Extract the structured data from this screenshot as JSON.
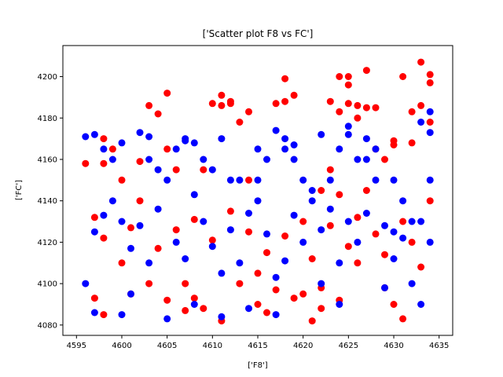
{
  "chart_data": {
    "type": "scatter",
    "title": "['Scatter plot F8 vs FC']",
    "xlabel": "['F8']",
    "ylabel": "['FC']",
    "xlim": [
      4593.5,
      4636.5
    ],
    "ylim": [
      4075,
      4215
    ],
    "xticks": [
      4595,
      4600,
      4605,
      4610,
      4615,
      4620,
      4625,
      4630,
      4635
    ],
    "yticks": [
      4080,
      4100,
      4120,
      4140,
      4160,
      4180,
      4200
    ],
    "grid": false,
    "legend": "none",
    "colors": {
      "red_series": "#ff0000",
      "blue_series": "#0000ff"
    },
    "series": [
      {
        "color": "#ff0000",
        "points": [
          [
            4596,
            4158
          ],
          [
            4597,
            4093
          ],
          [
            4598,
            4158
          ],
          [
            4598,
            4085
          ],
          [
            4598,
            4170
          ],
          [
            4599,
            4165
          ],
          [
            4600,
            4150
          ],
          [
            4601,
            4095
          ],
          [
            4602,
            4140
          ],
          [
            4602,
            4159
          ],
          [
            4603,
            4186
          ],
          [
            4604,
            4182
          ],
          [
            4605,
            4192
          ],
          [
            4605,
            4165
          ],
          [
            4606,
            4155
          ],
          [
            4607,
            4100
          ],
          [
            4608,
            4093
          ],
          [
            4609,
            4155
          ],
          [
            4610,
            4187
          ],
          [
            4611,
            4191
          ],
          [
            4611,
            4186
          ],
          [
            4612,
            4188
          ],
          [
            4612,
            4187
          ],
          [
            4613,
            4178
          ],
          [
            4614,
            4183
          ],
          [
            4614,
            4150
          ],
          [
            4615,
            4090
          ],
          [
            4616,
            4086
          ],
          [
            4617,
            4187
          ],
          [
            4618,
            4188
          ],
          [
            4618,
            4199
          ],
          [
            4619,
            4191
          ],
          [
            4620,
            4095
          ],
          [
            4621,
            4082
          ],
          [
            4622,
            4088
          ],
          [
            4622,
            4145
          ],
          [
            4623,
            4155
          ],
          [
            4623,
            4188
          ],
          [
            4624,
            4183
          ],
          [
            4624,
            4200
          ],
          [
            4625,
            4200
          ],
          [
            4625,
            4196
          ],
          [
            4625,
            4187
          ],
          [
            4626,
            4186
          ],
          [
            4626,
            4180
          ],
          [
            4627,
            4185
          ],
          [
            4627,
            4203
          ],
          [
            4628,
            4185
          ],
          [
            4628,
            4165
          ],
          [
            4629,
            4160
          ],
          [
            4630,
            4167
          ],
          [
            4630,
            4169
          ],
          [
            4631,
            4200
          ],
          [
            4631,
            4083
          ],
          [
            4632,
            4183
          ],
          [
            4632,
            4168
          ],
          [
            4633,
            4207
          ],
          [
            4633,
            4186
          ],
          [
            4634,
            4197
          ],
          [
            4634,
            4201
          ],
          [
            4634,
            4178
          ],
          [
            4630,
            4090
          ],
          [
            4629,
            4098
          ],
          [
            4626,
            4110
          ],
          [
            4624,
            4092
          ],
          [
            4622,
            4098
          ],
          [
            4619,
            4093
          ],
          [
            4617,
            4097
          ],
          [
            4615,
            4105
          ],
          [
            4613,
            4100
          ],
          [
            4611,
            4082
          ],
          [
            4609,
            4088
          ],
          [
            4607,
            4087
          ],
          [
            4605,
            4092
          ],
          [
            4603,
            4100
          ],
          [
            4600,
            4110
          ],
          [
            4598,
            4122
          ],
          [
            4597,
            4132
          ],
          [
            4601,
            4127
          ],
          [
            4604,
            4117
          ],
          [
            4606,
            4126
          ],
          [
            4608,
            4131
          ],
          [
            4610,
            4121
          ],
          [
            4612,
            4135
          ],
          [
            4614,
            4125
          ],
          [
            4616,
            4115
          ],
          [
            4618,
            4123
          ],
          [
            4620,
            4130
          ],
          [
            4621,
            4112
          ],
          [
            4623,
            4128
          ],
          [
            4625,
            4118
          ],
          [
            4626,
            4132
          ],
          [
            4628,
            4124
          ],
          [
            4629,
            4114
          ],
          [
            4631,
            4130
          ],
          [
            4632,
            4120
          ],
          [
            4633,
            4108
          ],
          [
            4634,
            4140
          ],
          [
            4627,
            4145
          ],
          [
            4624,
            4143
          ]
        ]
      },
      {
        "color": "#0000ff",
        "points": [
          [
            4596,
            4171
          ],
          [
            4596,
            4100
          ],
          [
            4597,
            4172
          ],
          [
            4597,
            4086
          ],
          [
            4598,
            4165
          ],
          [
            4599,
            4160
          ],
          [
            4600,
            4168
          ],
          [
            4600,
            4085
          ],
          [
            4601,
            4095
          ],
          [
            4602,
            4173
          ],
          [
            4603,
            4171
          ],
          [
            4603,
            4160
          ],
          [
            4604,
            4155
          ],
          [
            4605,
            4150
          ],
          [
            4605,
            4083
          ],
          [
            4606,
            4165
          ],
          [
            4607,
            4170
          ],
          [
            4607,
            4169
          ],
          [
            4608,
            4168
          ],
          [
            4608,
            4090
          ],
          [
            4609,
            4160
          ],
          [
            4610,
            4155
          ],
          [
            4611,
            4170
          ],
          [
            4611,
            4084
          ],
          [
            4612,
            4150
          ],
          [
            4613,
            4150
          ],
          [
            4614,
            4088
          ],
          [
            4615,
            4150
          ],
          [
            4615,
            4165
          ],
          [
            4616,
            4160
          ],
          [
            4617,
            4174
          ],
          [
            4617,
            4085
          ],
          [
            4618,
            4170
          ],
          [
            4618,
            4165
          ],
          [
            4619,
            4167
          ],
          [
            4619,
            4160
          ],
          [
            4620,
            4150
          ],
          [
            4621,
            4145
          ],
          [
            4622,
            4172
          ],
          [
            4622,
            4100
          ],
          [
            4623,
            4150
          ],
          [
            4624,
            4165
          ],
          [
            4624,
            4090
          ],
          [
            4625,
            4176
          ],
          [
            4625,
            4172
          ],
          [
            4626,
            4160
          ],
          [
            4627,
            4170
          ],
          [
            4627,
            4160
          ],
          [
            4628,
            4165
          ],
          [
            4628,
            4150
          ],
          [
            4629,
            4098
          ],
          [
            4630,
            4125
          ],
          [
            4630,
            4150
          ],
          [
            4631,
            4140
          ],
          [
            4632,
            4130
          ],
          [
            4632,
            4100
          ],
          [
            4633,
            4178
          ],
          [
            4633,
            4090
          ],
          [
            4634,
            4173
          ],
          [
            4634,
            4183
          ],
          [
            4634,
            4150
          ],
          [
            4597,
            4125
          ],
          [
            4598,
            4133
          ],
          [
            4599,
            4140
          ],
          [
            4601,
            4117
          ],
          [
            4602,
            4128
          ],
          [
            4603,
            4110
          ],
          [
            4604,
            4136
          ],
          [
            4606,
            4120
          ],
          [
            4607,
            4112
          ],
          [
            4609,
            4130
          ],
          [
            4610,
            4118
          ],
          [
            4612,
            4126
          ],
          [
            4613,
            4110
          ],
          [
            4614,
            4134
          ],
          [
            4616,
            4124
          ],
          [
            4618,
            4111
          ],
          [
            4619,
            4133
          ],
          [
            4620,
            4120
          ],
          [
            4622,
            4126
          ],
          [
            4623,
            4136
          ],
          [
            4625,
            4130
          ],
          [
            4626,
            4120
          ],
          [
            4627,
            4134
          ],
          [
            4629,
            4128
          ],
          [
            4630,
            4112
          ],
          [
            4631,
            4122
          ],
          [
            4633,
            4130
          ],
          [
            4634,
            4120
          ],
          [
            4621,
            4140
          ],
          [
            4615,
            4140
          ],
          [
            4608,
            4143
          ],
          [
            4600,
            4130
          ],
          [
            4611,
            4105
          ],
          [
            4617,
            4103
          ],
          [
            4624,
            4110
          ]
        ]
      }
    ]
  }
}
